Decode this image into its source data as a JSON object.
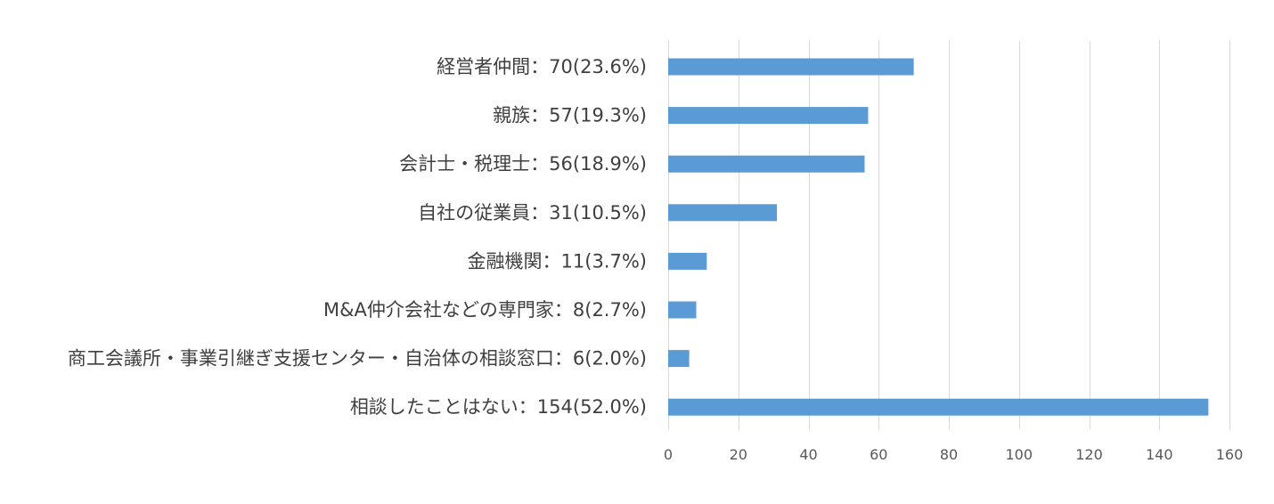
{
  "chart_data": {
    "type": "bar",
    "orientation": "horizontal",
    "title": "",
    "xlabel": "",
    "ylabel": "",
    "categories": [
      "経営者仲間：70(23.6%)",
      "親族：57(19.3%)",
      "会計士・税理士：56(18.9%)",
      "自社の従業員：31(10.5%)",
      "金融機関：11(3.7%)",
      "M&A仲介会社などの専門家：8(2.7%)",
      "商工会議所・事業引継ぎ支援センター・自治体の相談窓口：6(2.0%)",
      "相談したことはない：154(52.0%)"
    ],
    "values": [
      70,
      57,
      56,
      31,
      11,
      8,
      6,
      154
    ],
    "xlim": [
      0,
      160
    ],
    "x_ticks": [
      "0",
      "20",
      "40",
      "60",
      "80",
      "100",
      "120",
      "140",
      "160"
    ],
    "x_tick_values": [
      0,
      20,
      40,
      60,
      80,
      100,
      120,
      140,
      160
    ],
    "grid": "vertical",
    "legend": "none",
    "colors": {
      "bar": "#5b9bd5",
      "grid": "#d9d9d9",
      "axis": "#d9d9d9",
      "label_text": "#3f3f3f",
      "tick_text": "#595959"
    }
  }
}
